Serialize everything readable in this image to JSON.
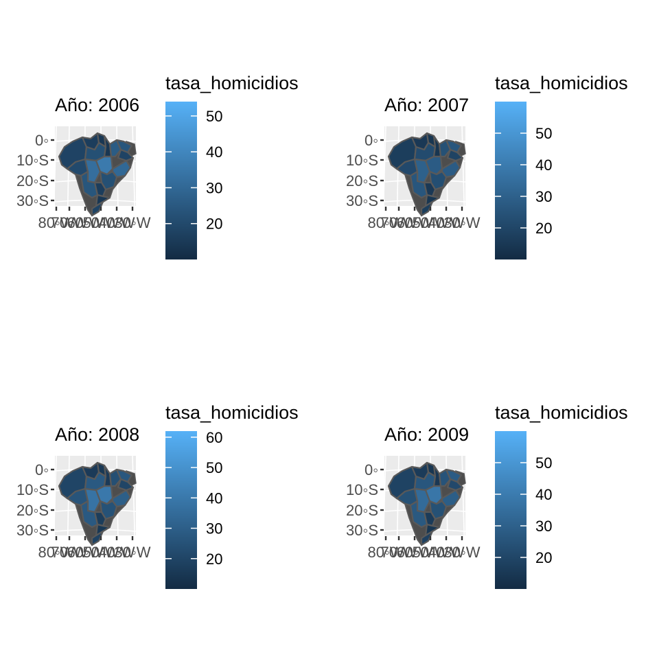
{
  "legend_title": "tasa_homicidios",
  "lat_labels": [
    "0◦",
    "10◦S",
    "20◦S",
    "30◦S"
  ],
  "lon_labels": [
    "80◦W",
    "70◦W",
    "60◦W",
    "50◦W",
    "40◦W",
    "30◦W"
  ],
  "colors": {
    "low": "#132b43",
    "high": "#56b1f7",
    "panel_bg": "#ebebeb",
    "border": "#595959",
    "outside": "#4d4d4d"
  },
  "panels": [
    {
      "title": "Año: 2006",
      "range": [
        10,
        54
      ],
      "breaks": [
        20,
        30,
        40,
        50
      ],
      "region_values": [
        18,
        16,
        14,
        22,
        20,
        32,
        36,
        14,
        26,
        24,
        18,
        30,
        22,
        16,
        14,
        18,
        24
      ]
    },
    {
      "title": "Año: 2007",
      "range": [
        10,
        60
      ],
      "breaks": [
        20,
        30,
        40,
        50
      ],
      "region_values": [
        17,
        15,
        14,
        22,
        21,
        30,
        28,
        14,
        24,
        26,
        19,
        28,
        23,
        15,
        14,
        17,
        26
      ]
    },
    {
      "title": "Año: 2008",
      "range": [
        10,
        62
      ],
      "breaks": [
        20,
        30,
        40,
        50,
        60
      ],
      "region_values": [
        20,
        16,
        15,
        28,
        26,
        38,
        40,
        16,
        24,
        27,
        20,
        30,
        25,
        17,
        15,
        19,
        28
      ]
    },
    {
      "title": "Año: 2009",
      "range": [
        10,
        60
      ],
      "breaks": [
        20,
        30,
        40,
        50
      ],
      "region_values": [
        19,
        16,
        14,
        26,
        24,
        34,
        38,
        15,
        25,
        28,
        21,
        29,
        24,
        16,
        14,
        18,
        27
      ]
    }
  ]
}
